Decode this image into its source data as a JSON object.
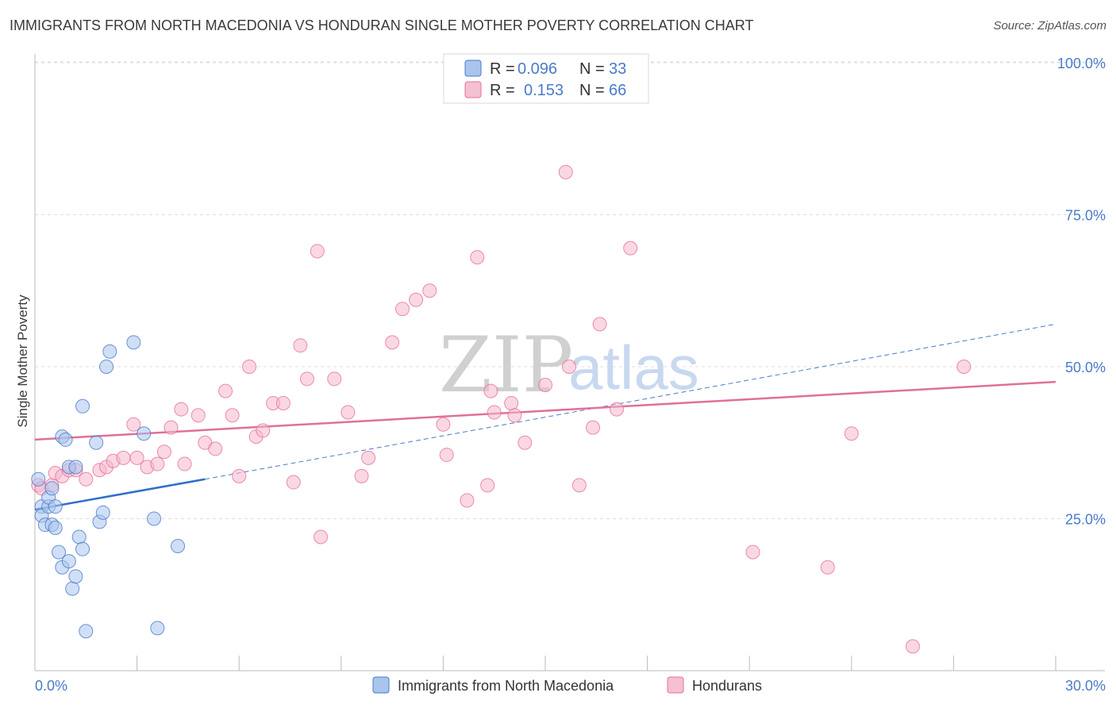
{
  "title": "IMMIGRANTS FROM NORTH MACEDONIA VS HONDURAN SINGLE MOTHER POVERTY CORRELATION CHART",
  "source": "Source: ZipAtlas.com",
  "watermark": {
    "zip": "ZIP",
    "atlas": "atlas"
  },
  "legend": {
    "r_label": "R =",
    "n_label": "N =",
    "rows": [
      {
        "r": "0.096",
        "n": "33"
      },
      {
        "r": "0.153",
        "n": "66"
      }
    ]
  },
  "chart_data": {
    "type": "scatter",
    "title": "IMMIGRANTS FROM NORTH MACEDONIA VS HONDURAN SINGLE MOTHER POVERTY CORRELATION CHART",
    "xlabel": "",
    "ylabel": "Single Mother Poverty",
    "xlim": [
      0,
      30
    ],
    "ylim": [
      0,
      105
    ],
    "x_tick_labels": [
      "0.0%",
      "30.0%"
    ],
    "y_ticks": [
      25,
      50,
      75,
      100
    ],
    "y_tick_labels": [
      "25.0%",
      "50.0%",
      "75.0%",
      "100.0%"
    ],
    "grid": true,
    "colors": {
      "blue": "#4a7bc8",
      "blue_fill": "#a9c5ee",
      "blue_line": "#2f6fcc",
      "pink": "#e86f9a",
      "pink_fill": "#f4b8cc",
      "pink_line": "#e07098"
    },
    "series": [
      {
        "name": "Immigrants from North Macedonia",
        "color": "blue",
        "points": [
          [
            0.1,
            31.5
          ],
          [
            0.2,
            27.0
          ],
          [
            0.2,
            25.5
          ],
          [
            0.3,
            24.0
          ],
          [
            0.4,
            27.0
          ],
          [
            0.4,
            28.5
          ],
          [
            0.5,
            30.0
          ],
          [
            0.5,
            24.0
          ],
          [
            0.6,
            23.5
          ],
          [
            0.6,
            27.0
          ],
          [
            0.7,
            19.5
          ],
          [
            0.8,
            38.5
          ],
          [
            0.8,
            17.0
          ],
          [
            0.9,
            38.0
          ],
          [
            1.0,
            33.5
          ],
          [
            1.0,
            18.0
          ],
          [
            1.1,
            13.5
          ],
          [
            1.2,
            33.5
          ],
          [
            1.2,
            15.5
          ],
          [
            1.3,
            22.0
          ],
          [
            1.4,
            43.5
          ],
          [
            1.4,
            20.0
          ],
          [
            1.5,
            6.5
          ],
          [
            1.8,
            37.5
          ],
          [
            1.9,
            24.5
          ],
          [
            2.0,
            26.0
          ],
          [
            2.1,
            50.0
          ],
          [
            2.2,
            52.5
          ],
          [
            2.9,
            54.0
          ],
          [
            3.2,
            39.0
          ],
          [
            3.5,
            25.0
          ],
          [
            3.6,
            7.0
          ],
          [
            4.2,
            20.5
          ]
        ],
        "trend": {
          "x": [
            0,
            5
          ],
          "y": [
            26.5,
            31.5
          ],
          "dashed_ext_x": [
            5,
            30
          ],
          "dashed_ext_y": [
            31.5,
            57.0
          ]
        }
      },
      {
        "name": "Hondurans",
        "color": "pink",
        "points": [
          [
            0.1,
            30.5
          ],
          [
            0.2,
            30.0
          ],
          [
            0.5,
            30.5
          ],
          [
            0.6,
            32.5
          ],
          [
            0.8,
            32.0
          ],
          [
            1.0,
            33.0
          ],
          [
            1.2,
            33.0
          ],
          [
            1.5,
            31.5
          ],
          [
            1.9,
            33.0
          ],
          [
            2.1,
            33.5
          ],
          [
            2.3,
            34.5
          ],
          [
            2.6,
            35.0
          ],
          [
            2.9,
            40.5
          ],
          [
            3.0,
            35.0
          ],
          [
            3.3,
            33.5
          ],
          [
            3.6,
            34.0
          ],
          [
            3.8,
            36.0
          ],
          [
            4.0,
            40.0
          ],
          [
            4.3,
            43.0
          ],
          [
            4.4,
            34.0
          ],
          [
            4.8,
            42.0
          ],
          [
            5.0,
            37.5
          ],
          [
            5.3,
            36.5
          ],
          [
            5.6,
            46.0
          ],
          [
            5.8,
            42.0
          ],
          [
            6.0,
            32.0
          ],
          [
            6.3,
            50.0
          ],
          [
            6.5,
            38.5
          ],
          [
            6.7,
            39.5
          ],
          [
            7.0,
            44.0
          ],
          [
            7.3,
            44.0
          ],
          [
            7.6,
            31.0
          ],
          [
            7.8,
            53.5
          ],
          [
            8.0,
            48.0
          ],
          [
            8.3,
            69.0
          ],
          [
            8.4,
            22.0
          ],
          [
            8.8,
            48.0
          ],
          [
            9.2,
            42.5
          ],
          [
            9.6,
            32.0
          ],
          [
            9.8,
            35.0
          ],
          [
            10.5,
            54.0
          ],
          [
            10.8,
            59.5
          ],
          [
            11.2,
            61.0
          ],
          [
            11.6,
            62.5
          ],
          [
            12.0,
            40.5
          ],
          [
            12.1,
            35.5
          ],
          [
            12.7,
            28.0
          ],
          [
            13.0,
            68.0
          ],
          [
            13.3,
            30.5
          ],
          [
            13.4,
            46.0
          ],
          [
            13.5,
            42.5
          ],
          [
            14.0,
            44.0
          ],
          [
            14.1,
            42.0
          ],
          [
            14.4,
            37.5
          ],
          [
            15.0,
            47.0
          ],
          [
            15.6,
            82.0
          ],
          [
            15.7,
            50.0
          ],
          [
            16.0,
            30.5
          ],
          [
            16.4,
            40.0
          ],
          [
            16.6,
            57.0
          ],
          [
            17.1,
            43.0
          ],
          [
            17.5,
            69.5
          ],
          [
            21.1,
            19.5
          ],
          [
            23.3,
            17.0
          ],
          [
            24.0,
            39.0
          ],
          [
            25.8,
            4.0
          ],
          [
            27.3,
            50.0
          ]
        ],
        "trend": {
          "x": [
            0,
            30
          ],
          "y": [
            38.0,
            47.5
          ]
        }
      }
    ]
  }
}
